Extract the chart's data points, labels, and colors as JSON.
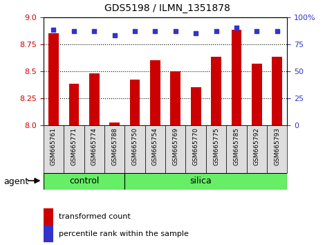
{
  "title": "GDS5198 / ILMN_1351878",
  "samples": [
    "GSM665761",
    "GSM665771",
    "GSM665774",
    "GSM665788",
    "GSM665750",
    "GSM665754",
    "GSM665769",
    "GSM665770",
    "GSM665775",
    "GSM665785",
    "GSM665792",
    "GSM665793"
  ],
  "n_control": 4,
  "n_silica": 8,
  "transformed_count": [
    8.85,
    8.38,
    8.48,
    8.02,
    8.42,
    8.6,
    8.5,
    8.35,
    8.63,
    8.88,
    8.57,
    8.63
  ],
  "percentile_rank": [
    88,
    87,
    87,
    83,
    87,
    87,
    87,
    85,
    87,
    90,
    87,
    87
  ],
  "ylim_left": [
    8.0,
    9.0
  ],
  "ylim_right": [
    0,
    100
  ],
  "yticks_left": [
    8.0,
    8.25,
    8.5,
    8.75,
    9.0
  ],
  "yticks_right": [
    0,
    25,
    50,
    75,
    100
  ],
  "bar_color": "#CC0000",
  "dot_color": "#3333CC",
  "bar_width": 0.5,
  "group_color": "#66EE66",
  "agent_label": "agent",
  "legend_bar_label": "transformed count",
  "legend_dot_label": "percentile rank within the sample",
  "figsize": [
    4.83,
    3.54
  ],
  "dpi": 100,
  "tick_bg_color": "#DDDDDD"
}
